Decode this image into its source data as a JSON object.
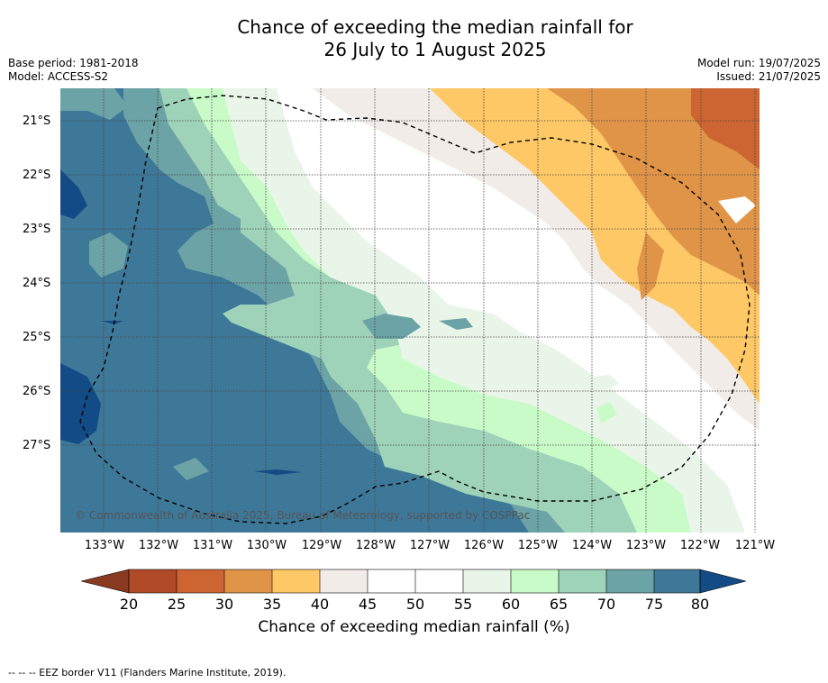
{
  "title": {
    "line1": "Chance of exceeding the median rainfall for",
    "line2": "26 July to 1 August 2025"
  },
  "meta": {
    "base_period": "Base period: 1981-2018",
    "model": "Model: ACCESS-S2",
    "model_run": "Model run: 19/07/2025",
    "issued": "Issued: 21/07/2025"
  },
  "map": {
    "lat_labels": [
      "21°S",
      "22°S",
      "23°S",
      "24°S",
      "25°S",
      "26°S",
      "27°S"
    ],
    "lon_labels": [
      "133°W",
      "132°W",
      "131°W",
      "130°W",
      "129°W",
      "128°W",
      "127°W",
      "126°W",
      "125°W",
      "124°W",
      "123°W",
      "122°W",
      "121°W"
    ],
    "copyright": "© Commonwealth of Australia 2025, Bureau of Meteorology, supported by COSPPac"
  },
  "colorbar": {
    "ticks": [
      "20",
      "25",
      "30",
      "35",
      "40",
      "45",
      "50",
      "55",
      "60",
      "65",
      "70",
      "75",
      "80"
    ],
    "colors": [
      "#8b3a22",
      "#b04a27",
      "#cd6532",
      "#e09448",
      "#fdc865",
      "#f2ece8",
      "#ffffff",
      "#ffffff",
      "#eaf5ea",
      "#c9fbc9",
      "#9ed3b9",
      "#6ba3a6",
      "#3e7899",
      "#124b86"
    ],
    "label": "Chance of exceeding median rainfall (%)"
  },
  "footnote": "--  --  -- EEZ border V11 (Flanders Marine Institute, 2019)."
}
